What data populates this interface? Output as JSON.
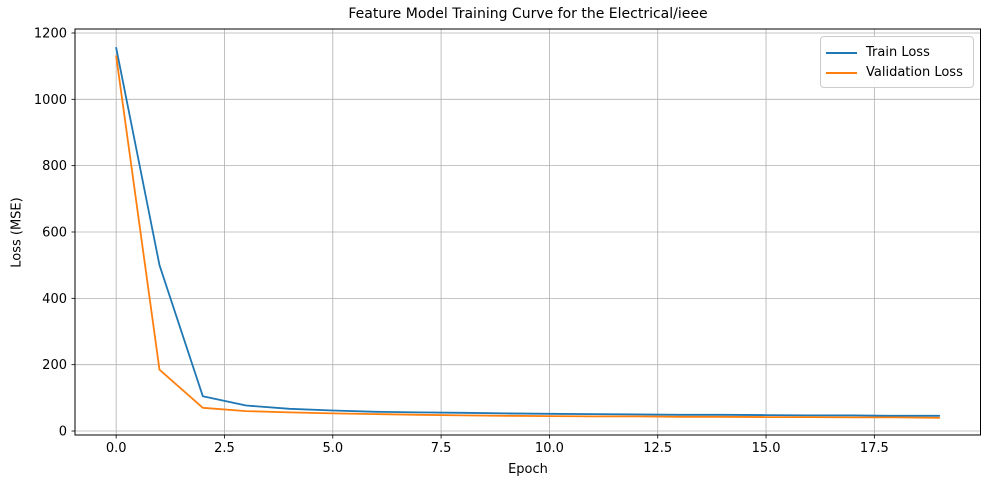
{
  "chart_data": {
    "type": "line",
    "title": "Feature Model Training Curve for the Electrical/ieee",
    "xlabel": "Epoch",
    "ylabel": "Loss (MSE)",
    "x": [
      0,
      1,
      2,
      3,
      4,
      5,
      6,
      7,
      8,
      9,
      10,
      11,
      12,
      13,
      14,
      15,
      16,
      17,
      18,
      19
    ],
    "series": [
      {
        "name": "Train Loss",
        "color": "#1f77b4",
        "values": [
          1155,
          500,
          105,
          77,
          67,
          62,
          58,
          56,
          55,
          53,
          52,
          51,
          50,
          49,
          49,
          48,
          47,
          47,
          46,
          46
        ]
      },
      {
        "name": "Validation Loss",
        "color": "#ff7f0e",
        "values": [
          1130,
          185,
          70,
          60,
          56,
          53,
          51,
          49,
          47,
          46,
          45,
          44,
          44,
          43,
          43,
          42,
          42,
          41,
          41,
          40
        ]
      }
    ],
    "xlim": [
      -0.95,
      19.95
    ],
    "ylim": [
      -12,
      1212
    ],
    "xticks": [
      0,
      2.5,
      5,
      7.5,
      10,
      12.5,
      15,
      17.5
    ],
    "xtick_labels": [
      "0.0",
      "2.5",
      "5.0",
      "7.5",
      "10.0",
      "12.5",
      "15.0",
      "17.5"
    ],
    "yticks": [
      0,
      200,
      400,
      600,
      800,
      1000,
      1200
    ],
    "ytick_labels": [
      "0",
      "200",
      "400",
      "600",
      "800",
      "1000",
      "1200"
    ],
    "grid": true,
    "grid_color": "#b0b0b0",
    "spine_color": "#000000",
    "legend_position": "upper right"
  }
}
